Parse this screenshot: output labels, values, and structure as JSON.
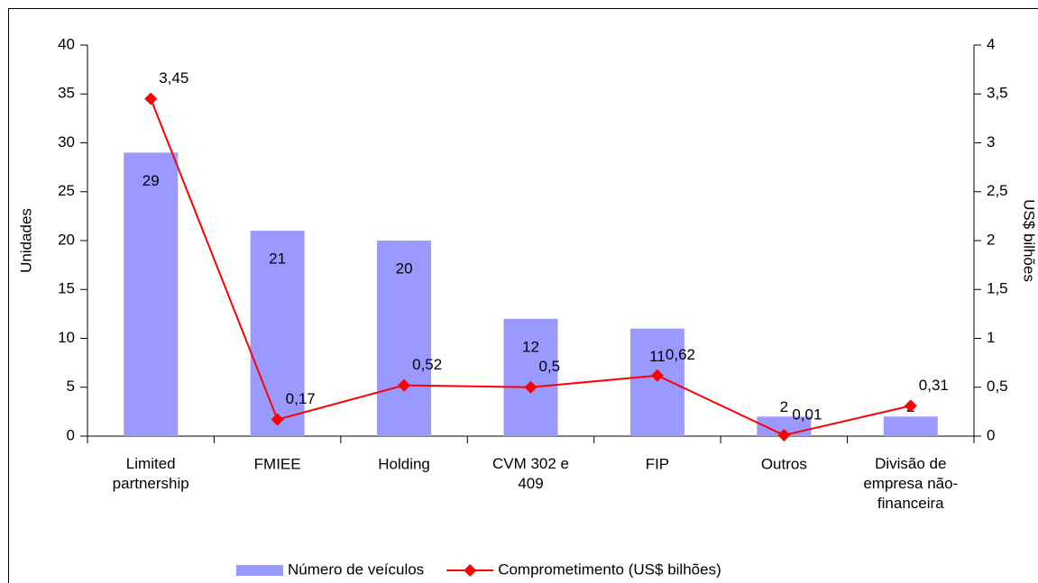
{
  "chart_data": {
    "type": "bar-line",
    "categories": [
      "Limited\npartnership",
      "FMIEE",
      "Holding",
      "CVM 302 e\n409",
      "FIP",
      "Outros",
      "Divisão de\nempresa não-\nfinanceira"
    ],
    "ylabel": "Unidades",
    "y2label": "US$ bilhões",
    "ylim": [
      0,
      40
    ],
    "yticks": [
      0,
      5,
      10,
      15,
      20,
      25,
      30,
      35,
      40
    ],
    "y2lim": [
      0,
      4
    ],
    "y2ticks": [
      0,
      {
        "value": 0.5,
        "label": "0,5"
      },
      1,
      {
        "value": 1.5,
        "label": "1,5"
      },
      2,
      {
        "value": 2.5,
        "label": "2,5"
      },
      3,
      {
        "value": 3.5,
        "label": "3,5"
      },
      4
    ],
    "legend": "bottom",
    "series": [
      {
        "name": "Número de veículos",
        "type": "bar",
        "color": "#9999ff",
        "values": [
          29,
          21,
          20,
          12,
          11,
          2,
          2
        ]
      },
      {
        "name": "Comprometimento (US$ bilhões)",
        "type": "line",
        "axis": "y2",
        "color": "#ff0000",
        "values": [
          3.45,
          0.17,
          0.52,
          0.5,
          0.62,
          0.01,
          0.31
        ],
        "value_labels": [
          "3,45",
          "0,17",
          "0,52",
          "0,5",
          "0,62",
          "0,01",
          "0,31"
        ]
      }
    ]
  }
}
